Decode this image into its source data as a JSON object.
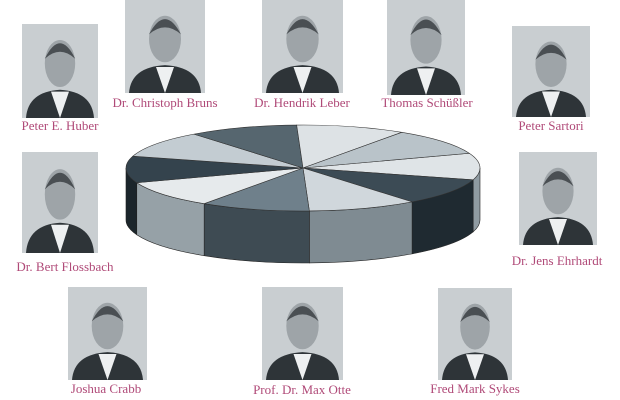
{
  "people": [
    {
      "name": "Peter E. Huber"
    },
    {
      "name": "Dr. Christoph Bruns"
    },
    {
      "name": "Dr. Hendrik Leber"
    },
    {
      "name": "Thomas Schüßler"
    },
    {
      "name": "Peter Sartori"
    },
    {
      "name": "Dr. Bert Flossbach"
    },
    {
      "name": "Dr. Jens Ehrhardt"
    },
    {
      "name": "Joshua Crabb"
    },
    {
      "name": "Prof. Dr. Max Otte"
    },
    {
      "name": "Fred Mark Sykes"
    }
  ]
}
